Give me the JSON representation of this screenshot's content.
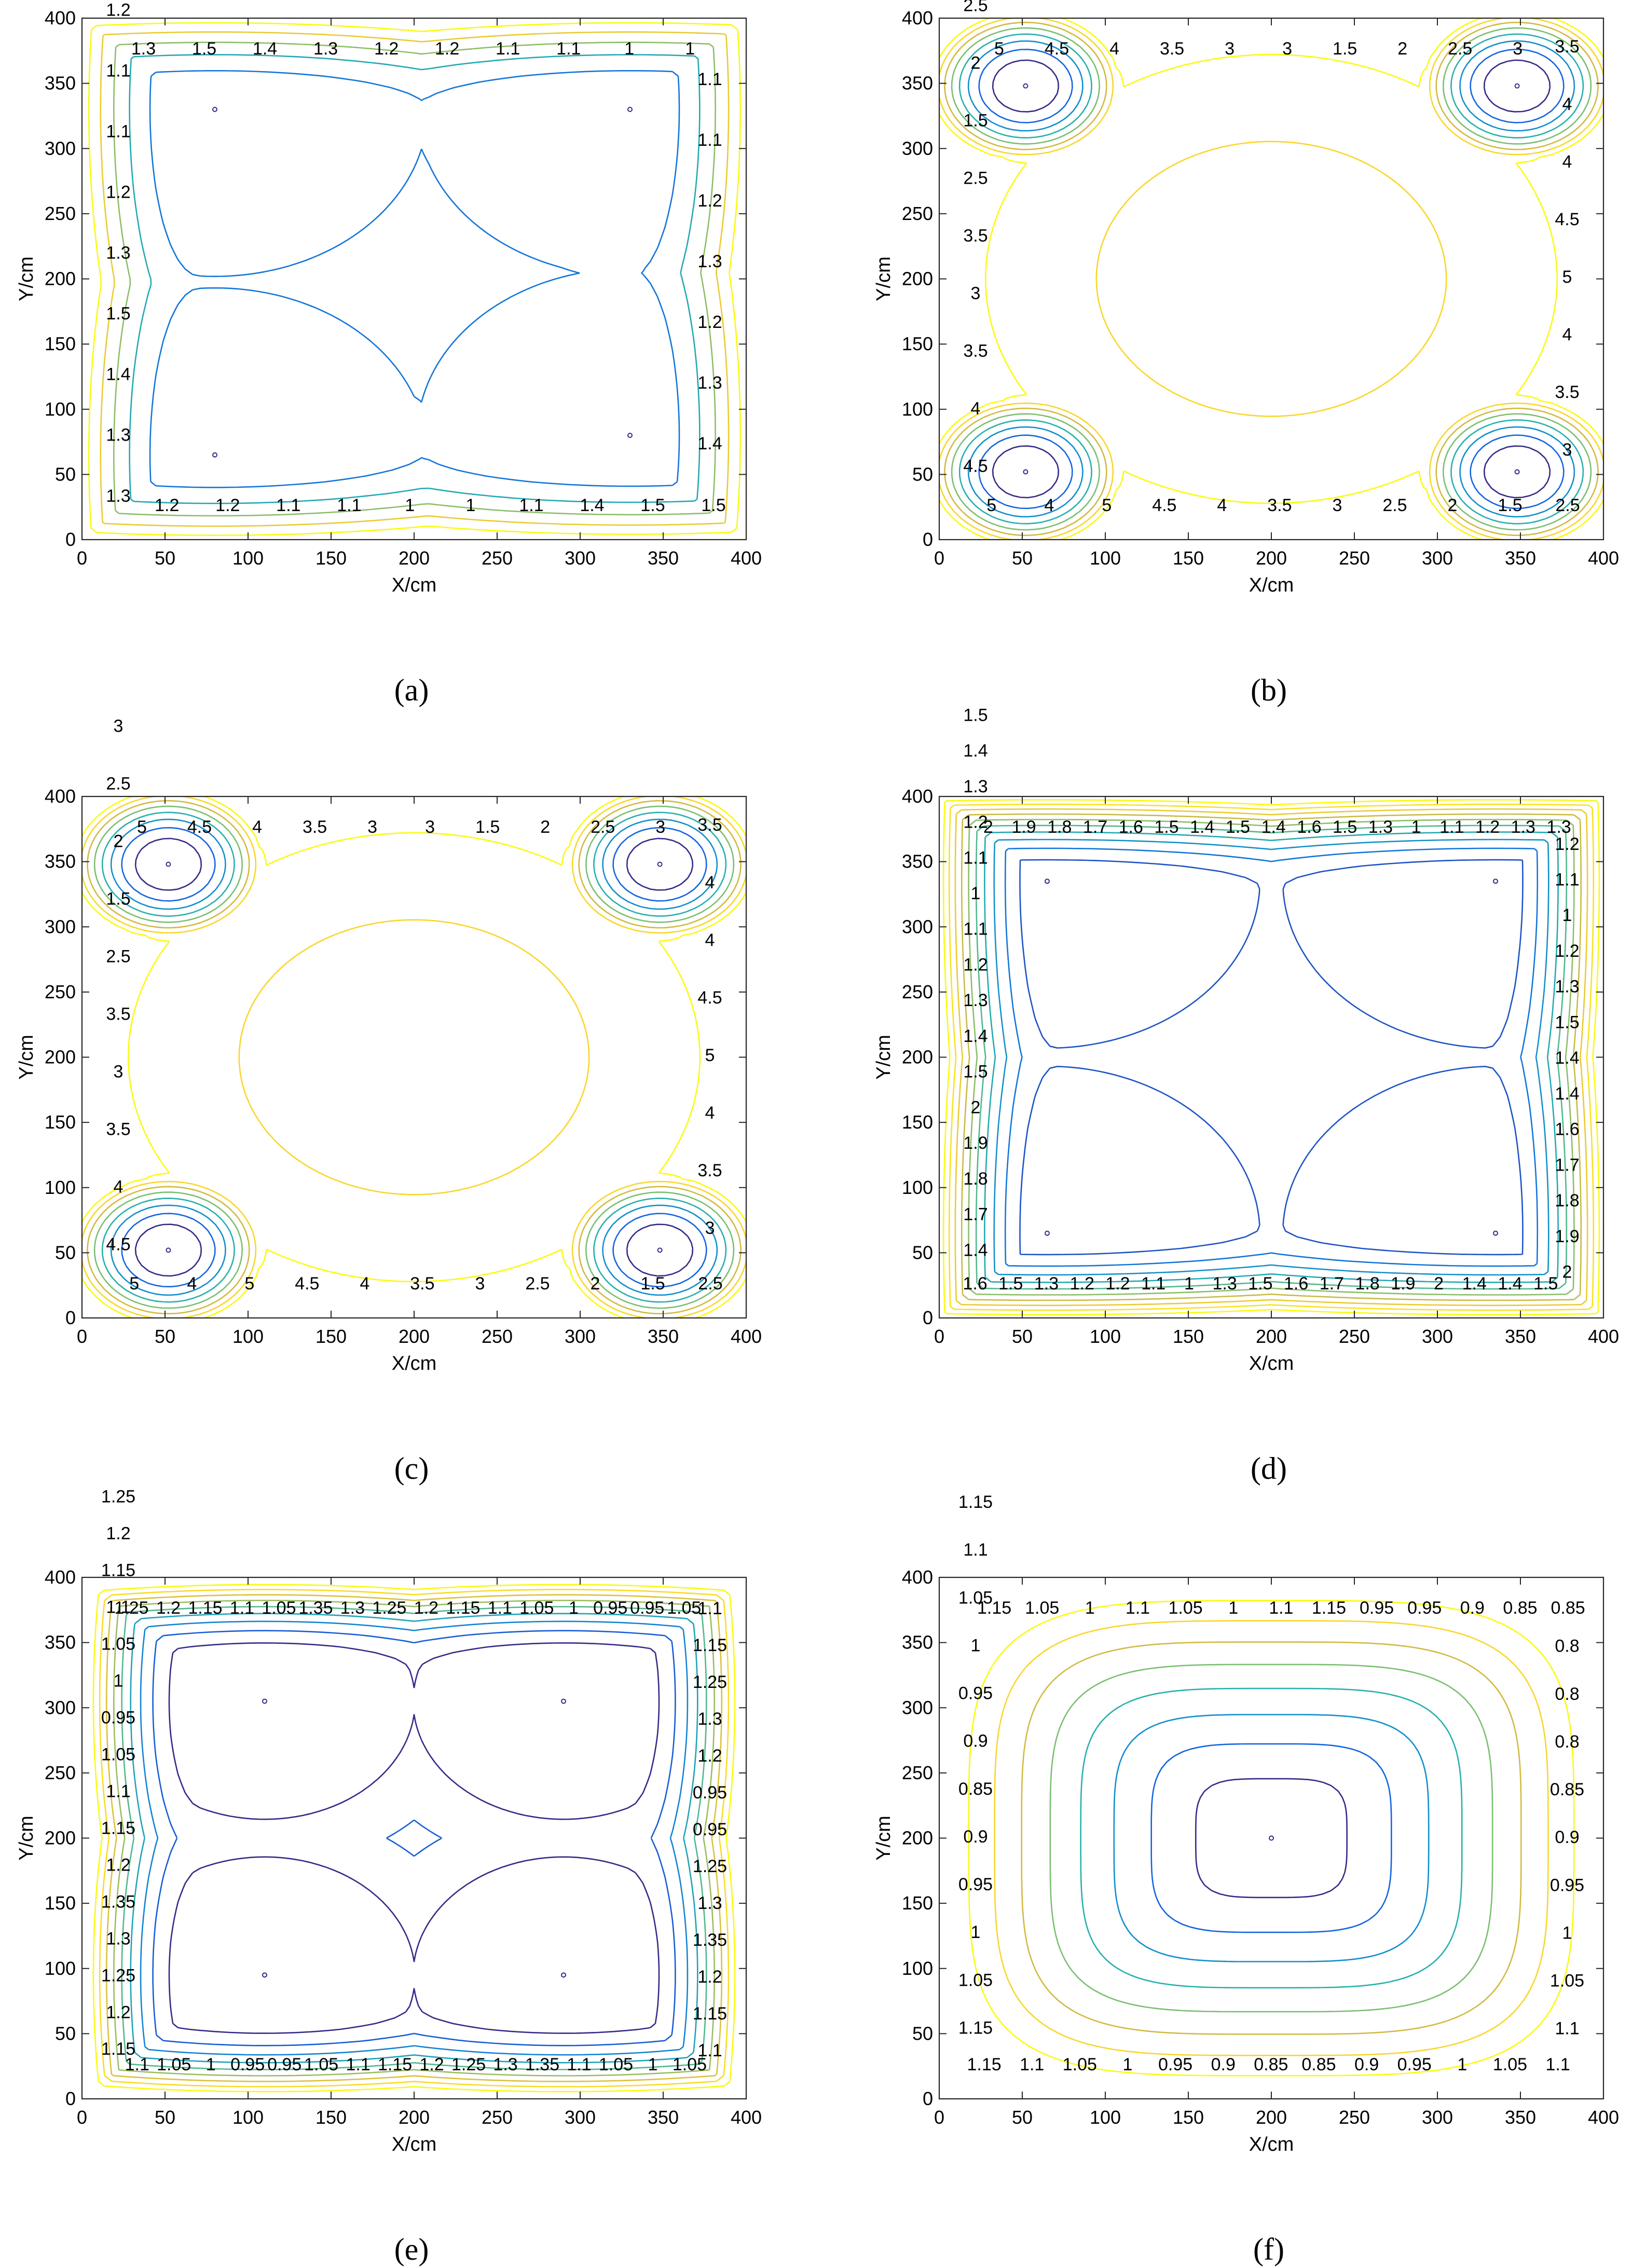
{
  "chart_data": [
    {
      "type": "contour",
      "caption": "(a)",
      "xlabel": "X/cm",
      "ylabel": "Y/cm",
      "xlim": [
        0,
        400
      ],
      "ylim": [
        0,
        400
      ],
      "xticks": [
        0,
        50,
        100,
        150,
        200,
        250,
        300,
        350,
        400
      ],
      "yticks": [
        0,
        50,
        100,
        150,
        200,
        250,
        300,
        350,
        400
      ],
      "field": "low_center_x_pattern",
      "minima": [
        [
          80,
          65
        ],
        [
          330,
          80
        ],
        [
          80,
          330
        ],
        [
          330,
          330
        ]
      ],
      "minimum_value": 1.0,
      "levels": [
        1,
        1.1,
        1.2,
        1.3,
        1.4,
        1.5
      ],
      "contour_labels": [
        "1.3",
        "1.5",
        "1.4",
        "1.3",
        "1.2",
        "1.2",
        "1.1",
        "1.1",
        "1",
        "1",
        "1.1",
        "1.1",
        "1.2",
        "1.3",
        "1.2",
        "1.3",
        "1.4",
        "1.5",
        "1.5",
        "1.4",
        "1.1",
        "1",
        "1",
        "1.1",
        "1.1",
        "1.2",
        "1.2",
        "1.3",
        "1.3",
        "1.4",
        "1.5",
        "1.3",
        "1.2",
        "1.1",
        "1.1",
        "1.2",
        "1.3"
      ]
    },
    {
      "type": "contour",
      "caption": "(b)",
      "xlabel": "X/cm",
      "ylabel": "Y/cm",
      "xlim": [
        0,
        400
      ],
      "ylim": [
        0,
        400
      ],
      "xticks": [
        0,
        50,
        100,
        150,
        200,
        250,
        300,
        350,
        400
      ],
      "yticks": [
        0,
        50,
        100,
        150,
        200,
        250,
        300,
        350,
        400
      ],
      "field": "corner_wells",
      "minima": [
        [
          52,
          52
        ],
        [
          348,
          52
        ],
        [
          52,
          348
        ],
        [
          348,
          348
        ]
      ],
      "minimum_value": 1.0,
      "levels": [
        1.5,
        2,
        2.5,
        3,
        3.5,
        4,
        4.5,
        5
      ],
      "contour_labels": [
        "5",
        "4.5",
        "4",
        "3.5",
        "3",
        "3",
        "1.5",
        "2",
        "2.5",
        "3",
        "3.5",
        "4",
        "4",
        "4.5",
        "5",
        "4",
        "3.5",
        "3",
        "2.5",
        "1.5",
        "2",
        "2.5",
        "3",
        "3.5",
        "4",
        "4.5",
        "5",
        "4",
        "5",
        "4.5",
        "4",
        "3.5",
        "3",
        "3.5",
        "2.5",
        "1.5",
        "2",
        "2.5",
        "3"
      ]
    },
    {
      "type": "contour",
      "caption": "(c)",
      "xlabel": "X/cm",
      "ylabel": "Y/cm",
      "xlim": [
        0,
        400
      ],
      "ylim": [
        0,
        400
      ],
      "xticks": [
        0,
        50,
        100,
        150,
        200,
        250,
        300,
        350,
        400
      ],
      "yticks": [
        0,
        50,
        100,
        150,
        200,
        250,
        300,
        350,
        400
      ],
      "field": "corner_wells",
      "minima": [
        [
          52,
          52
        ],
        [
          348,
          52
        ],
        [
          52,
          348
        ],
        [
          348,
          348
        ]
      ],
      "minimum_value": 1.0,
      "levels": [
        1.5,
        2,
        2.5,
        3,
        3.5,
        4,
        4.5,
        5
      ],
      "contour_labels": [
        "5",
        "4.5",
        "4",
        "3.5",
        "3",
        "3",
        "1.5",
        "2",
        "2.5",
        "3",
        "3.5",
        "4",
        "4",
        "4.5",
        "5",
        "4",
        "3.5",
        "3",
        "2.5",
        "1.5",
        "2",
        "2.5",
        "3",
        "3.5",
        "4",
        "4.5",
        "5",
        "4",
        "5",
        "4.5",
        "4",
        "3.5",
        "3",
        "3.5",
        "2.5",
        "1.5",
        "2",
        "2.5",
        "3"
      ]
    },
    {
      "type": "contour",
      "caption": "(d)",
      "xlabel": "X/cm",
      "ylabel": "Y/cm",
      "xlim": [
        0,
        400
      ],
      "ylim": [
        0,
        400
      ],
      "xticks": [
        0,
        50,
        100,
        150,
        200,
        250,
        300,
        350,
        400
      ],
      "yticks": [
        0,
        50,
        100,
        150,
        200,
        250,
        300,
        350,
        400
      ],
      "field": "low_center_x_pattern",
      "minima": [
        [
          65,
          65
        ],
        [
          335,
          65
        ],
        [
          65,
          335
        ],
        [
          335,
          335
        ]
      ],
      "minimum_value": 1.0,
      "levels": [
        1,
        1.1,
        1.2,
        1.3,
        1.4,
        1.5,
        1.6,
        1.7,
        1.8,
        1.9,
        2
      ],
      "contour_labels": [
        "2",
        "1.9",
        "1.8",
        "1.7",
        "1.6",
        "1.5",
        "1.4",
        "1.5",
        "1.4",
        "1.6",
        "1.5",
        "1.3",
        "1",
        "1.1",
        "1.2",
        "1.3",
        "1.3",
        "1.2",
        "1.1",
        "1",
        "1.2",
        "1.3",
        "1.5",
        "1.4",
        "1.4",
        "1.6",
        "1.7",
        "1.8",
        "1.9",
        "2",
        "1.5",
        "1.4",
        "1.4",
        "2",
        "1.9",
        "1.8",
        "1.7",
        "1.6",
        "1.5",
        "1.3",
        "1",
        "1.1",
        "1.2",
        "1.2",
        "1.3",
        "1.5",
        "1.6",
        "1.4",
        "1.7",
        "1.8",
        "1.9",
        "2",
        "1.5",
        "1.4",
        "1.3",
        "1.2",
        "1.1",
        "1",
        "1.1",
        "1.2",
        "1.3",
        "1.4",
        "1.5"
      ]
    },
    {
      "type": "contour",
      "caption": "(e)",
      "xlabel": "X/cm",
      "ylabel": "Y/cm",
      "xlim": [
        0,
        400
      ],
      "ylim": [
        0,
        400
      ],
      "xticks": [
        0,
        50,
        100,
        150,
        200,
        250,
        300,
        350,
        400
      ],
      "yticks": [
        0,
        50,
        100,
        150,
        200,
        250,
        300,
        350,
        400
      ],
      "field": "low_center_x_pattern",
      "minima": [
        [
          110,
          95
        ],
        [
          290,
          95
        ],
        [
          110,
          305
        ],
        [
          290,
          305
        ]
      ],
      "minimum_value": 0.9,
      "levels": [
        0.95,
        1,
        1.05,
        1.1,
        1.15,
        1.2,
        1.25,
        1.3,
        1.35
      ],
      "contour_labels": [
        "1.25",
        "1.2",
        "1.15",
        "1.1",
        "1.05",
        "1.35",
        "1.3",
        "1.25",
        "1.2",
        "1.15",
        "1.1",
        "1.05",
        "1",
        "0.95",
        "0.95",
        "1.05",
        "1.1",
        "1.15",
        "1.25",
        "1.3",
        "1.2",
        "0.95",
        "0.95",
        "1.25",
        "1.3",
        "1.35",
        "1.2",
        "1.15",
        "1.1",
        "1.05",
        "1",
        "1.05",
        "1.1",
        "1.35",
        "1.3",
        "1.25",
        "1.2",
        "1.15",
        "1.1",
        "1.05",
        "0.95",
        "0.95",
        "1",
        "1.05",
        "1.1",
        "1.15",
        "1.2",
        "1.25",
        "1.3",
        "1.35",
        "1.2",
        "1.15",
        "1.1",
        "1.05",
        "0.95",
        "1",
        "1.05",
        "1.1",
        "1.15",
        "1.2",
        "1.25"
      ]
    },
    {
      "type": "contour",
      "caption": "(f)",
      "xlabel": "X/cm",
      "ylabel": "Y/cm",
      "xlim": [
        0,
        400
      ],
      "ylim": [
        0,
        400
      ],
      "xticks": [
        0,
        50,
        100,
        150,
        200,
        250,
        300,
        350,
        400
      ],
      "yticks": [
        0,
        50,
        100,
        150,
        200,
        250,
        300,
        350,
        400
      ],
      "field": "center_bowl",
      "minima": [
        [
          200,
          200
        ]
      ],
      "minimum_value": 0.75,
      "levels": [
        0.8,
        0.85,
        0.9,
        0.95,
        1,
        1.05,
        1.1,
        1.15
      ],
      "contour_labels": [
        "1.15",
        "1.05",
        "1",
        "1.1",
        "1.05",
        "1",
        "1.1",
        "1.15",
        "0.95",
        "0.95",
        "0.9",
        "0.85",
        "0.85",
        "0.8",
        "0.8",
        "0.8",
        "0.85",
        "0.9",
        "0.95",
        "1",
        "1.05",
        "1.1",
        "1.1",
        "1.05",
        "1",
        "0.95",
        "0.9",
        "0.85",
        "0.85",
        "0.9",
        "0.95",
        "1",
        "1.05",
        "1.1",
        "1.15",
        "1.15",
        "1.05",
        "1",
        "0.95",
        "0.9",
        "0.85",
        "0.9",
        "0.95",
        "1",
        "1.05",
        "1.1",
        "1.15"
      ]
    }
  ]
}
